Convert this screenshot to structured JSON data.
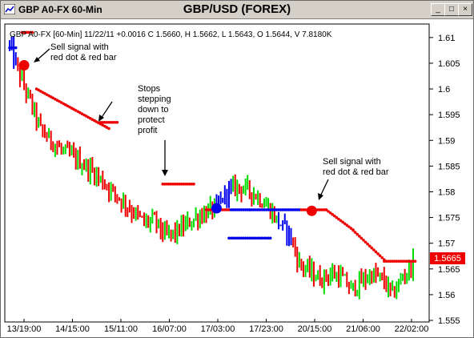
{
  "window": {
    "app_title": "GBP A0-FX 60-Min",
    "min_glyph": "_",
    "max_glyph": "□",
    "close_glyph": "×"
  },
  "chart_data": {
    "type": "bar",
    "title": "GBP/USD (FOREX)",
    "info_line": "GBP A0-FX [60-Min] 11/22/11 +0.0016 C 1.5660, H 1.5662, L 1.5643, O 1.5644, V 7.8180K",
    "ylim": [
      1.555,
      1.612
    ],
    "y_ticks": [
      "1.61",
      "1.605",
      "1.6",
      "1.595",
      "1.59",
      "1.585",
      "1.58",
      "1.575",
      "1.57",
      "1.565",
      "1.56",
      "1.555"
    ],
    "x_ticks": [
      "13/19:00",
      "14/15:00",
      "15/11:00",
      "16/07:00",
      "17/03:00",
      "17/23:00",
      "20/15:00",
      "21/06:00",
      "22/02:00"
    ],
    "last_price": "1.5665",
    "colors": {
      "up": "#00dd00",
      "down": "#ee0000",
      "neutral": "#0000ee",
      "stop": "#ee0000",
      "stop_neutral": "#0000ee",
      "price_tag": "#ee0000"
    },
    "annotations": [
      {
        "lines": [
          "Sell signal with",
          "red dot & red bar"
        ]
      },
      {
        "lines": [
          "Stops",
          "stepping",
          "down to",
          "protect",
          "profit"
        ]
      },
      {
        "lines": [
          "Sell signal with",
          "red dot & red bar"
        ]
      }
    ],
    "anchors": [
      1.6085,
      1.6025,
      1.5975,
      1.592,
      1.59,
      1.588,
      1.587,
      1.5855,
      1.584,
      1.582,
      1.58,
      1.578,
      1.576,
      1.574,
      1.5745,
      1.5715,
      1.572,
      1.5735,
      1.575,
      1.576,
      1.577,
      1.58,
      1.581,
      1.5805,
      1.579,
      1.577,
      1.574,
      1.572,
      1.566,
      1.5645,
      1.563,
      1.564,
      1.5635,
      1.561,
      1.5625,
      1.564,
      1.563,
      1.56,
      1.5635,
      1.566
    ],
    "stop_segments": [
      {
        "from_bar": 0,
        "to_bar": 3,
        "value": 1.608,
        "color": "neutral"
      },
      {
        "from_bar": 6,
        "to_bar": 11,
        "value": 1.611,
        "color": "stop"
      },
      {
        "from_bar": 13,
        "to_bar": 48,
        "value": "curve",
        "color": "stop"
      },
      {
        "from_bar": 44,
        "to_bar": 52,
        "value": 1.5935,
        "color": "stop"
      },
      {
        "from_bar": 74,
        "to_bar": 89,
        "value": 1.5815,
        "color": "stop"
      },
      {
        "from_bar": 95,
        "to_bar": 106,
        "value": 1.5765,
        "color": "stop"
      },
      {
        "from_bar": 107,
        "to_bar": 116,
        "value": 1.5765,
        "color": "neutral"
      },
      {
        "from_bar": 106,
        "to_bar": 126,
        "value": 1.571,
        "color": "neutral"
      },
      {
        "from_bar": 116,
        "to_bar": 140,
        "value": 1.5765,
        "color": "neutral"
      },
      {
        "from_bar": 141,
        "to_bar": 153,
        "value": 1.5765,
        "color": "stop"
      },
      {
        "from_bar": 153,
        "to_bar": 166,
        "value": "curve2",
        "color": "stop"
      },
      {
        "from_bar": 166,
        "to_bar": 181,
        "value": "curve3",
        "color": "stop"
      },
      {
        "from_bar": 181,
        "to_bar": 196,
        "value": 1.5665,
        "color": "stop"
      }
    ],
    "signal_dots": [
      {
        "bar": 7,
        "value": 1.6046,
        "color": "stop"
      },
      {
        "bar": 100,
        "value": 1.5768,
        "color": "neutral"
      },
      {
        "bar": 146,
        "value": 1.5763,
        "color": "stop"
      }
    ]
  }
}
